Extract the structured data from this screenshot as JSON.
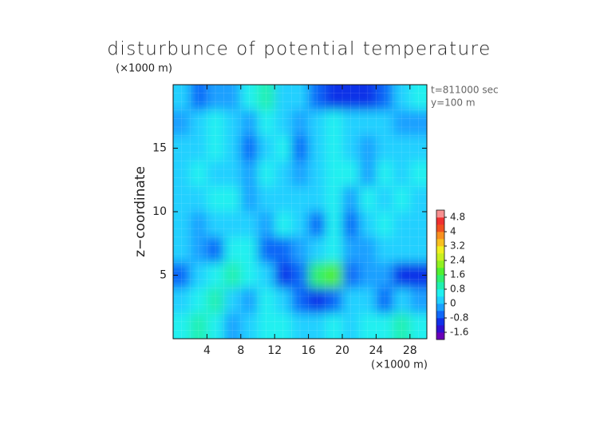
{
  "chart_data": {
    "type": "heatmap",
    "title": "disturbunce of potential temperature",
    "y_unit_label": "(×1000 m)",
    "x_label": "(×1000 m)",
    "y_label": "z−coordinate",
    "annotations": [
      "t=811000 sec",
      "y=100 m"
    ],
    "xlim": [
      0,
      30
    ],
    "ylim": [
      0,
      20
    ],
    "xticks": [
      4,
      8,
      12,
      16,
      20,
      24,
      28
    ],
    "yticks": [
      5,
      10,
      15
    ],
    "x": [
      1,
      3,
      5,
      7,
      9,
      11,
      13,
      15,
      17,
      19,
      21,
      23,
      25,
      27,
      29
    ],
    "y": [
      19,
      17,
      15,
      13,
      11,
      9,
      7,
      5,
      3,
      1
    ],
    "values": [
      [
        0.2,
        -0.6,
        -0.4,
        -0.2,
        0.6,
        0.8,
        0.2,
        0.0,
        -0.6,
        -1.0,
        -1.2,
        -1.0,
        -0.6,
        0.2,
        0.6
      ],
      [
        -0.4,
        0.2,
        0.4,
        0.2,
        -0.2,
        0.4,
        0.2,
        -0.4,
        0.2,
        0.4,
        0.2,
        0.0,
        0.2,
        -0.4,
        -0.2
      ],
      [
        0.0,
        0.2,
        0.4,
        0.0,
        -0.6,
        0.2,
        0.4,
        -0.6,
        0.2,
        0.4,
        0.2,
        -0.2,
        0.2,
        0.0,
        0.2
      ],
      [
        0.2,
        0.4,
        0.2,
        0.2,
        -0.4,
        0.4,
        0.2,
        -0.2,
        0.2,
        0.4,
        0.4,
        -0.2,
        0.4,
        0.2,
        0.4
      ],
      [
        0.2,
        0.2,
        0.4,
        0.4,
        -0.2,
        0.2,
        0.2,
        0.2,
        0.0,
        0.4,
        -0.2,
        0.4,
        0.2,
        0.4,
        0.2
      ],
      [
        0.2,
        -0.4,
        0.2,
        0.2,
        0.0,
        -0.2,
        0.4,
        0.2,
        -0.6,
        0.4,
        -0.6,
        0.2,
        0.4,
        0.2,
        0.2
      ],
      [
        0.0,
        -0.2,
        -0.8,
        0.4,
        0.4,
        -0.6,
        -0.8,
        -0.4,
        0.2,
        0.6,
        -0.4,
        -0.2,
        0.2,
        0.2,
        0.0
      ],
      [
        -0.8,
        0.2,
        0.6,
        0.8,
        0.4,
        0.2,
        -1.2,
        -0.8,
        1.4,
        1.6,
        -0.6,
        -0.2,
        -0.4,
        -1.0,
        -1.2
      ],
      [
        0.2,
        0.6,
        1.0,
        0.2,
        -0.2,
        0.4,
        0.2,
        -0.6,
        -1.2,
        -0.8,
        0.2,
        0.0,
        -0.8,
        0.2,
        -0.4
      ],
      [
        0.4,
        0.8,
        0.4,
        -0.2,
        0.2,
        0.6,
        0.4,
        0.2,
        0.0,
        0.4,
        0.2,
        0.4,
        0.6,
        0.8,
        0.6
      ]
    ],
    "levels": [
      -2,
      -1.6,
      -1.2,
      -0.8,
      -0.4,
      0,
      0.4,
      0.8,
      1.2,
      1.6,
      2,
      2.4,
      2.8,
      3.2,
      3.6,
      4,
      4.4,
      4.8,
      5.2
    ],
    "colors": [
      "#6a00b8",
      "#3010d0",
      "#1030e8",
      "#1068f8",
      "#1aa0ff",
      "#20d0ff",
      "#20f0f0",
      "#20f0b0",
      "#30f070",
      "#50f030",
      "#90f020",
      "#c8f020",
      "#f0f020",
      "#f8c020",
      "#f89020",
      "#f05020",
      "#f03030",
      "#f89090"
    ],
    "colorbar_ticks": [
      -1.6,
      -0.8,
      0,
      0.8,
      1.6,
      2.4,
      3.2,
      4,
      4.8
    ]
  }
}
